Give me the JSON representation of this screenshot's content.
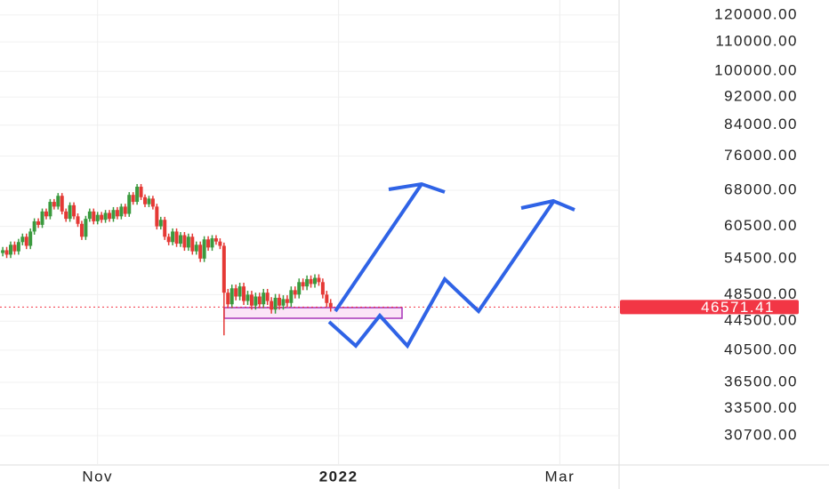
{
  "chart_data": {
    "type": "candlestick",
    "categories": [
      null,
      null,
      null,
      null,
      null,
      null,
      null,
      null,
      null,
      null,
      null,
      null,
      null,
      null,
      null,
      null,
      null,
      null,
      null,
      null,
      null,
      null,
      null,
      null,
      null,
      null,
      null,
      null,
      null,
      null,
      null,
      null,
      null,
      null,
      null,
      null,
      null,
      null,
      null,
      null,
      null,
      null,
      null,
      null,
      null,
      null,
      null,
      null,
      null,
      null,
      null,
      null,
      null,
      null,
      null,
      null,
      null,
      null,
      null,
      null,
      null,
      null,
      null,
      null,
      null,
      null,
      null,
      null,
      null,
      null,
      null,
      null,
      null,
      null,
      null,
      null,
      null,
      null,
      null,
      null,
      null,
      null,
      null,
      null
    ],
    "open": [
      55500,
      56000,
      55200,
      57000,
      55800,
      57500,
      58500,
      56800,
      59500,
      61500,
      60800,
      63500,
      62500,
      65500,
      64500,
      66800,
      63500,
      62000,
      64800,
      62500,
      61000,
      58500,
      62000,
      63500,
      61500,
      62800,
      61800,
      63200,
      62000,
      63800,
      62500,
      64500,
      63000,
      67000,
      65500,
      68800,
      66500,
      65000,
      66200,
      64500,
      60500,
      61800,
      58500,
      57500,
      59500,
      57200,
      58800,
      56500,
      58500,
      55800,
      57000,
      54500,
      58000,
      56500,
      58200,
      57600,
      56800,
      48800,
      47000,
      49500,
      48200,
      49800,
      47500,
      48500,
      46800,
      48200,
      47000,
      48800,
      47500,
      46200,
      48000,
      46800,
      47800,
      47200,
      49200,
      48500,
      50500,
      49800,
      51000,
      50200,
      51200,
      50500,
      48500,
      47200
    ],
    "high": [
      56600,
      56600,
      57600,
      57600,
      58100,
      59100,
      59100,
      60100,
      62100,
      62100,
      64100,
      64100,
      66100,
      66100,
      67400,
      67400,
      64100,
      65400,
      65400,
      63100,
      61600,
      62600,
      64100,
      64100,
      63400,
      63400,
      63800,
      63800,
      64400,
      64400,
      65100,
      65100,
      67600,
      67600,
      69400,
      69400,
      67100,
      66800,
      66800,
      65100,
      62400,
      62400,
      59100,
      60100,
      60100,
      59400,
      59400,
      59100,
      59100,
      57600,
      57600,
      58600,
      58600,
      58800,
      58800,
      58200,
      57400,
      49400,
      50100,
      50100,
      50400,
      50400,
      49100,
      49100,
      48800,
      48800,
      49400,
      49400,
      48100,
      48600,
      48600,
      48400,
      48400,
      49800,
      49800,
      51100,
      51100,
      51600,
      51600,
      51800,
      51800,
      51100,
      49100,
      47800
    ],
    "low": [
      54900,
      54600,
      54600,
      55200,
      55200,
      56900,
      56200,
      56200,
      58900,
      60200,
      60200,
      61900,
      61900,
      63900,
      63900,
      62900,
      61400,
      61400,
      61900,
      60400,
      57900,
      57900,
      61400,
      60900,
      60900,
      61200,
      61200,
      61400,
      61400,
      61900,
      61900,
      62400,
      62400,
      64900,
      64900,
      65900,
      64400,
      64400,
      63900,
      59900,
      59900,
      57900,
      56900,
      56900,
      56600,
      56600,
      55900,
      55900,
      55200,
      55200,
      53900,
      53900,
      55900,
      55900,
      57000,
      56200,
      42500,
      46400,
      46400,
      47600,
      47600,
      46900,
      46900,
      46200,
      46200,
      46400,
      46400,
      46900,
      45600,
      45600,
      46200,
      46200,
      46600,
      46600,
      47900,
      47900,
      49200,
      49200,
      49600,
      49600,
      49900,
      47900,
      46600,
      45900
    ],
    "close": [
      56000,
      55200,
      57000,
      55800,
      57500,
      58500,
      56800,
      59500,
      61500,
      60800,
      63500,
      62500,
      65500,
      64500,
      66800,
      63500,
      62000,
      64800,
      62500,
      61000,
      58500,
      62000,
      63500,
      61500,
      62800,
      61800,
      63200,
      62000,
      63800,
      62500,
      64500,
      63000,
      67000,
      65500,
      68800,
      66500,
      65000,
      66200,
      64500,
      60500,
      61800,
      58500,
      57500,
      59500,
      57200,
      58800,
      56500,
      58500,
      55800,
      57000,
      54500,
      58000,
      56500,
      58200,
      57600,
      56800,
      48800,
      47000,
      49500,
      48200,
      49800,
      47500,
      48500,
      46800,
      48200,
      47000,
      48800,
      47500,
      46200,
      48000,
      46800,
      47800,
      47200,
      49200,
      48500,
      50500,
      49800,
      51000,
      50200,
      51200,
      50500,
      48500,
      47200,
      46571.41
    ],
    "up_color": "#3a9a3e",
    "down_color": "#e53935",
    "last_price": 46571.41,
    "last_price_color": "#f23645",
    "log_y": true,
    "grid": true,
    "ylim": [
      28000,
      126000
    ],
    "yticks": [
      {
        "value": 120000,
        "label": "120000.00"
      },
      {
        "value": 110000,
        "label": "110000.00"
      },
      {
        "value": 100000,
        "label": "100000.00"
      },
      {
        "value": 92000,
        "label": "92000.00"
      },
      {
        "value": 84000,
        "label": "84000.00"
      },
      {
        "value": 76000,
        "label": "76000.00"
      },
      {
        "value": 68000,
        "label": "68000.00"
      },
      {
        "value": 60500,
        "label": "60500.00"
      },
      {
        "value": 54500,
        "label": "54500.00"
      },
      {
        "value": 48500,
        "label": "48500.00"
      },
      {
        "value": 44500,
        "label": "44500.00"
      },
      {
        "value": 40500,
        "label": "40500.00"
      },
      {
        "value": 36500,
        "label": "36500.00"
      },
      {
        "value": 33500,
        "label": "33500.00"
      },
      {
        "value": 30700,
        "label": "30700.00"
      }
    ],
    "xlim": [
      -0.7,
      156
    ],
    "xticks": [
      {
        "value": 24,
        "label": "Nov"
      },
      {
        "value": 85,
        "label": "2022"
      },
      {
        "value": 141,
        "label": "Mar"
      }
    ]
  }
}
